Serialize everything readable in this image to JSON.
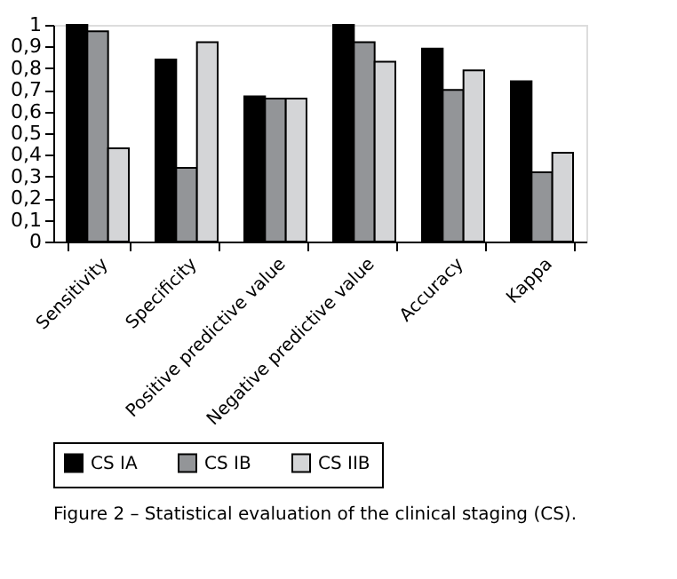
{
  "chart_data": {
    "type": "bar",
    "categories": [
      "Sensitivity",
      "Specificity",
      "Positive predictive value",
      "Negative predictive value",
      "Accuracy",
      "Kappa"
    ],
    "series": [
      {
        "name": "CS IA",
        "color": "#000000",
        "values": [
          1.0,
          0.84,
          0.67,
          1.0,
          0.89,
          0.74
        ]
      },
      {
        "name": "CS IB",
        "color": "#939598",
        "values": [
          0.97,
          0.34,
          0.66,
          0.92,
          0.7,
          0.32
        ]
      },
      {
        "name": "CS IIB",
        "color": "#d4d5d7",
        "values": [
          0.43,
          0.92,
          0.66,
          0.83,
          0.79,
          0.41
        ]
      }
    ],
    "ylim": [
      0,
      1
    ],
    "yticks": [
      0,
      {
        "value": 0.1,
        "label": "0,1"
      },
      {
        "value": 0.2,
        "label": "0,2"
      },
      {
        "value": 0.3,
        "label": "0,3"
      },
      {
        "value": 0.4,
        "label": "0,4"
      },
      {
        "value": 0.5,
        "label": "0,5"
      },
      {
        "value": 0.6,
        "label": "0,6"
      },
      {
        "value": 0.7,
        "label": "0,7"
      },
      {
        "value": 0.8,
        "label": "0,8"
      },
      {
        "value": 0.9,
        "label": "0,9"
      },
      1
    ],
    "grid": false,
    "legend": "bottom",
    "annotations": [
      "Figure 2 – Statistical evaluation of the clinical staging (CS)."
    ]
  }
}
